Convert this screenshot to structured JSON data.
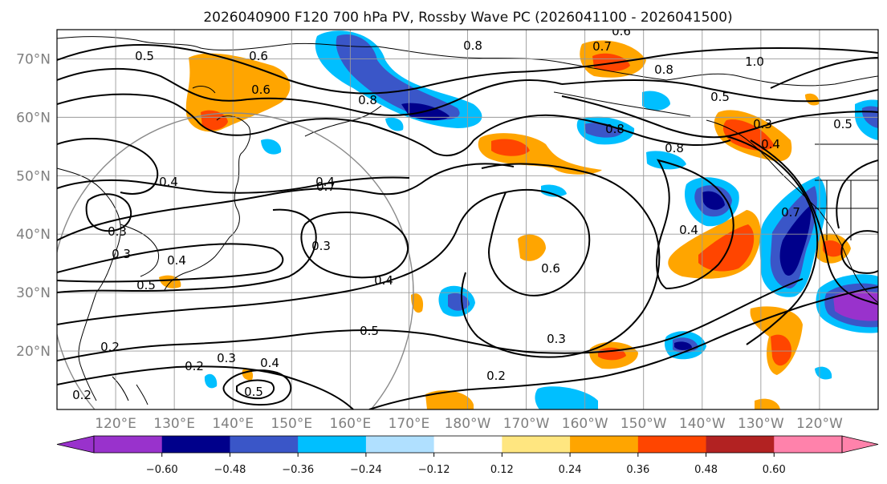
{
  "title": "2026040900 F120 700 hPa PV, Rossby Wave PC (2026041100 - 2026041500)",
  "map": {
    "lon_range_east": [
      110,
      250
    ],
    "lat_range": [
      10,
      75
    ],
    "lat_ticks": [
      {
        "label": "70°N",
        "value": 70
      },
      {
        "label": "60°N",
        "value": 60
      },
      {
        "label": "50°N",
        "value": 50
      },
      {
        "label": "40°N",
        "value": 40
      },
      {
        "label": "30°N",
        "value": 30
      },
      {
        "label": "20°N",
        "value": 20
      }
    ],
    "lon_ticks": [
      {
        "label": "120°E",
        "value": 120
      },
      {
        "label": "130°E",
        "value": 130
      },
      {
        "label": "140°E",
        "value": 140
      },
      {
        "label": "150°E",
        "value": 150
      },
      {
        "label": "160°E",
        "value": 160
      },
      {
        "label": "170°E",
        "value": 170
      },
      {
        "label": "180°W",
        "value": 180
      },
      {
        "label": "170°W",
        "value": 190
      },
      {
        "label": "160°W",
        "value": 200
      },
      {
        "label": "150°W",
        "value": 210
      },
      {
        "label": "140°W",
        "value": 220
      },
      {
        "label": "130°W",
        "value": 230
      },
      {
        "label": "120°W",
        "value": 240
      }
    ],
    "contour_labels": [
      "0.5",
      "0.6",
      "0.6",
      "0.8",
      "0.8",
      "0.6",
      "0.7",
      "0.8",
      "1.0",
      "0.5",
      "0.8",
      "0.5",
      "0.3",
      "0.4",
      "0.8",
      "0.7",
      "0.4",
      "0.3",
      "0.4",
      "0.3",
      "0.6",
      "0.5",
      "0.3",
      "0.4",
      "0.5",
      "0.7",
      "0.4",
      "0.3",
      "0.2",
      "0.3",
      "0.2",
      "0.4",
      "0.5",
      "0.2",
      "0.4",
      "0.2"
    ]
  },
  "colorbar": {
    "ticks": [
      "−0.60",
      "−0.48",
      "−0.36",
      "−0.24",
      "−0.12",
      "0.12",
      "0.24",
      "0.36",
      "0.48",
      "0.60"
    ],
    "levels": [
      -0.6,
      -0.48,
      -0.36,
      -0.24,
      -0.12,
      0.12,
      0.24,
      0.36,
      0.48,
      0.6
    ],
    "colors": [
      "#9932cc",
      "#00008b",
      "#3a56c8",
      "#00bfff",
      "#b0e0ff",
      "#ffffff",
      "#ffe680",
      "#ffa500",
      "#ff4500",
      "#b22222",
      "#ff82ab"
    ]
  }
}
